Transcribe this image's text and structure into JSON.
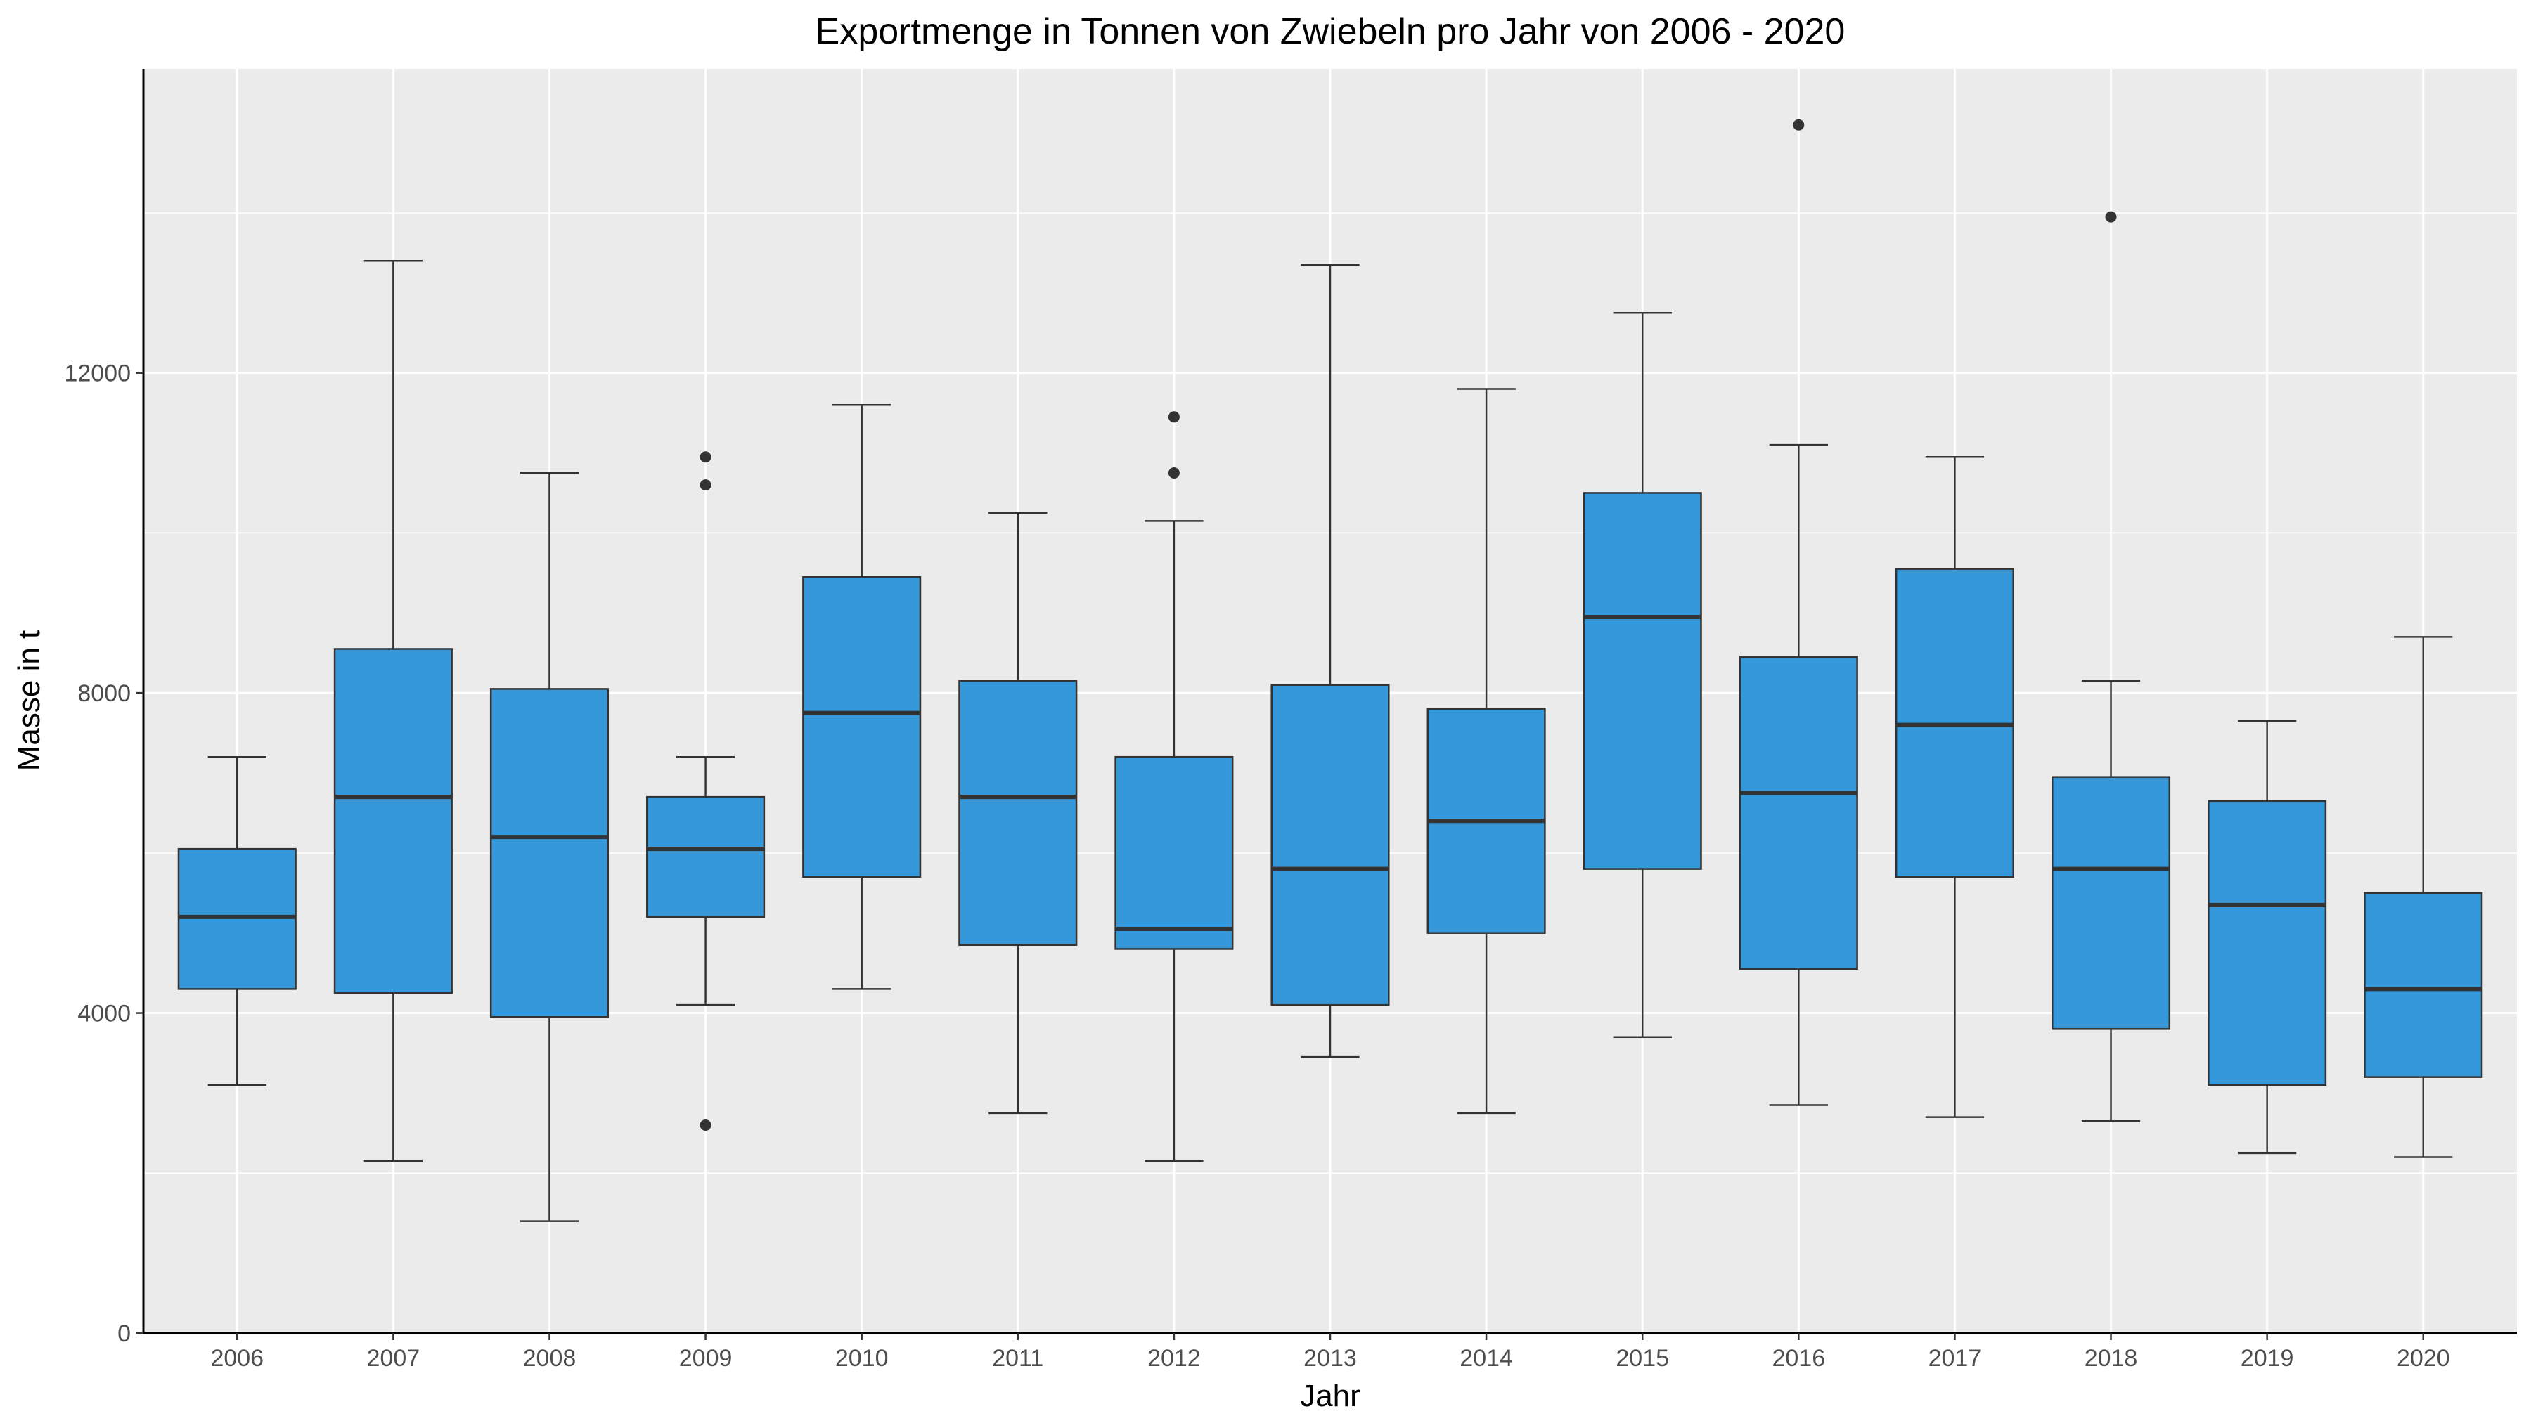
{
  "chart_data": {
    "type": "boxplot",
    "title": "Exportmenge in Tonnen von Zwiebeln pro Jahr von 2006 - 2020",
    "xlabel": "Jahr",
    "ylabel": "Masse in t",
    "categories": [
      "2006",
      "2007",
      "2008",
      "2009",
      "2010",
      "2011",
      "2012",
      "2013",
      "2014",
      "2015",
      "2016",
      "2017",
      "2018",
      "2019",
      "2020"
    ],
    "ylim": [
      0,
      15800
    ],
    "y_ticks": [
      0,
      4000,
      8000,
      12000
    ],
    "y_tick_labels": [
      "0",
      "4000",
      "8000",
      "12000"
    ],
    "grid": true,
    "box_color": "#3498db",
    "panel_color": "#ebebeb",
    "grid_color": "#ffffff",
    "boxes": [
      {
        "year": "2006",
        "whisker_low": 3100,
        "q1": 4300,
        "median": 5200,
        "q3": 6050,
        "whisker_high": 7200,
        "outliers": []
      },
      {
        "year": "2007",
        "whisker_low": 2150,
        "q1": 4250,
        "median": 6700,
        "q3": 8550,
        "whisker_high": 13400,
        "outliers": []
      },
      {
        "year": "2008",
        "whisker_low": 1400,
        "q1": 3950,
        "median": 6200,
        "q3": 8050,
        "whisker_high": 10750,
        "outliers": []
      },
      {
        "year": "2009",
        "whisker_low": 4100,
        "q1": 5200,
        "median": 6050,
        "q3": 6700,
        "whisker_high": 7200,
        "outliers": [
          10950,
          10600,
          2600
        ]
      },
      {
        "year": "2010",
        "whisker_low": 4300,
        "q1": 5700,
        "median": 7750,
        "q3": 9450,
        "whisker_high": 11600,
        "outliers": []
      },
      {
        "year": "2011",
        "whisker_low": 2750,
        "q1": 4850,
        "median": 6700,
        "q3": 8150,
        "whisker_high": 10250,
        "outliers": []
      },
      {
        "year": "2012",
        "whisker_low": 2150,
        "q1": 4800,
        "median": 5050,
        "q3": 7200,
        "whisker_high": 10150,
        "outliers": [
          11450,
          10750
        ]
      },
      {
        "year": "2013",
        "whisker_low": 3450,
        "q1": 4100,
        "median": 5800,
        "q3": 8100,
        "whisker_high": 13350,
        "outliers": []
      },
      {
        "year": "2014",
        "whisker_low": 2750,
        "q1": 5000,
        "median": 6400,
        "q3": 7800,
        "whisker_high": 11800,
        "outliers": []
      },
      {
        "year": "2015",
        "whisker_low": 3700,
        "q1": 5800,
        "median": 8950,
        "q3": 10500,
        "whisker_high": 12750,
        "outliers": []
      },
      {
        "year": "2016",
        "whisker_low": 2850,
        "q1": 4550,
        "median": 6750,
        "q3": 8450,
        "whisker_high": 11100,
        "outliers": [
          15100
        ]
      },
      {
        "year": "2017",
        "whisker_low": 2700,
        "q1": 5700,
        "median": 7600,
        "q3": 9550,
        "whisker_high": 10950,
        "outliers": []
      },
      {
        "year": "2018",
        "whisker_low": 2650,
        "q1": 3800,
        "median": 5800,
        "q3": 6950,
        "whisker_high": 8150,
        "outliers": [
          13950
        ]
      },
      {
        "year": "2019",
        "whisker_low": 2250,
        "q1": 3100,
        "median": 5350,
        "q3": 6650,
        "whisker_high": 7650,
        "outliers": []
      },
      {
        "year": "2020",
        "whisker_low": 2200,
        "q1": 3200,
        "median": 4300,
        "q3": 5500,
        "whisker_high": 8700,
        "outliers": []
      }
    ]
  }
}
